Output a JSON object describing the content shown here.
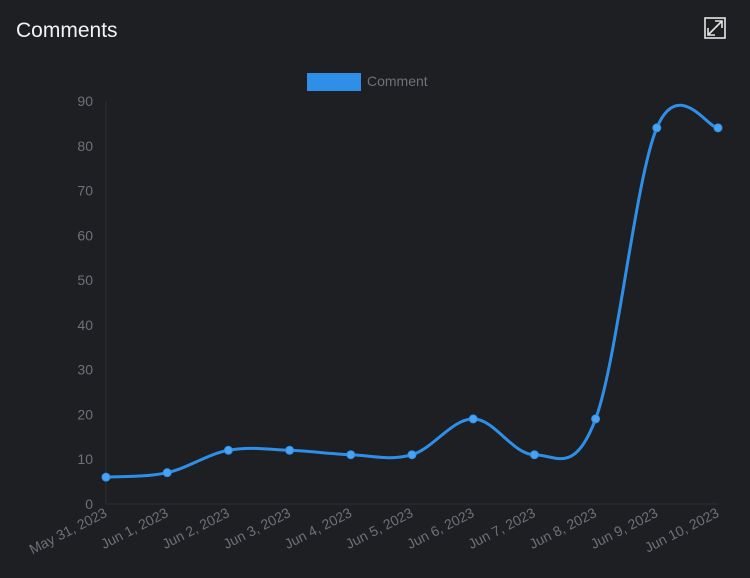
{
  "header": {
    "title": "Comments",
    "expand_icon": "expand-icon"
  },
  "colors": {
    "background": "#1d1f23",
    "series": "#2f8fe8",
    "axis_text": "#6e7178",
    "axis_line": "#2c2f34"
  },
  "chart_data": {
    "type": "line",
    "title": "",
    "xlabel": "",
    "ylabel": "",
    "legend": {
      "placement": "top-center",
      "entries": [
        "Comment"
      ]
    },
    "grid": false,
    "smooth": true,
    "x": [
      "May 31, 2023",
      "Jun 1, 2023",
      "Jun 2, 2023",
      "Jun 3, 2023",
      "Jun 4, 2023",
      "Jun 5, 2023",
      "Jun 6, 2023",
      "Jun 7, 2023",
      "Jun 8, 2023",
      "Jun 9, 2023",
      "Jun 10, 2023"
    ],
    "yticks": [
      0,
      10,
      20,
      30,
      40,
      50,
      60,
      70,
      80,
      90
    ],
    "ylim": [
      0,
      90
    ],
    "series": [
      {
        "name": "Comment",
        "values": [
          6,
          7,
          12,
          12,
          11,
          11,
          19,
          11,
          19,
          84,
          84
        ]
      }
    ]
  }
}
